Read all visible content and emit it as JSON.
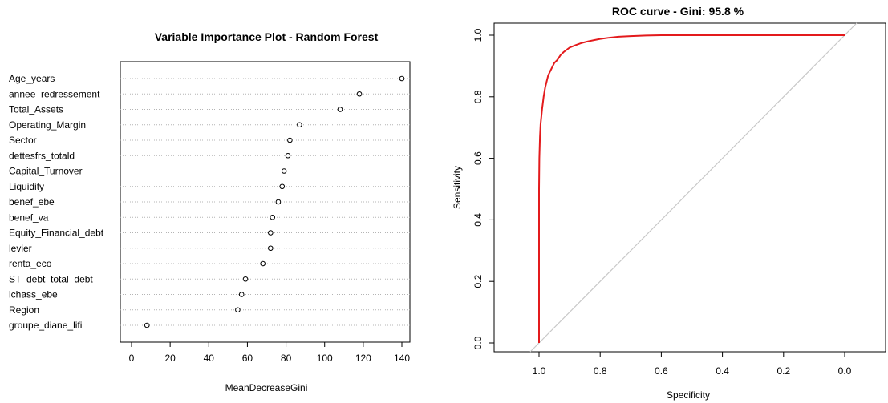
{
  "chart_data": [
    {
      "type": "scatter",
      "title": "Variable Importance Plot - Random Forest",
      "xlabel": "MeanDecreaseGini",
      "ylabel": "",
      "xlim": [
        0,
        145
      ],
      "xticks": [
        "0",
        "20",
        "40",
        "60",
        "80",
        "100",
        "120",
        "140"
      ],
      "categories": [
        "Age_years",
        "annee_redressement",
        "Total_Assets",
        "Operating_Margin",
        "Sector",
        "dettesfrs_totald",
        "Capital_Turnover",
        "Liquidity",
        "benef_ebe",
        "benef_va",
        "Equity_Financial_debt",
        "levier",
        "renta_eco",
        "ST_debt_total_debt",
        "ichass_ebe",
        "Region",
        "groupe_diane_lifi"
      ],
      "values": [
        140,
        118,
        108,
        87,
        82,
        81,
        79,
        78,
        76,
        73,
        72,
        72,
        68,
        59,
        57,
        55,
        8
      ],
      "grid": "dotted-horizontal"
    },
    {
      "type": "line",
      "title": "ROC curve - Gini:  95.8 %",
      "xlabel": "Specificity",
      "ylabel": "Sensitivity",
      "xlim": [
        1.1,
        -0.1
      ],
      "ylim": [
        0,
        1.04
      ],
      "xticks": [
        "1.0",
        "0.8",
        "0.6",
        "0.4",
        "0.2",
        "0.0"
      ],
      "yticks": [
        "0.0",
        "0.2",
        "0.4",
        "0.6",
        "0.8",
        "1.0"
      ],
      "series": [
        {
          "x": [
            1.0,
            1.0,
            0.999,
            0.997,
            0.995,
            0.99,
            0.985,
            0.98,
            0.975,
            0.97,
            0.96,
            0.95,
            0.94,
            0.93,
            0.92,
            0.9,
            0.88,
            0.86,
            0.84,
            0.82,
            0.8,
            0.77,
            0.74,
            0.7,
            0.65,
            0.6,
            0.5,
            0.4,
            0.3,
            0.2,
            0.1,
            0.0
          ],
          "y": [
            0.0,
            0.5,
            0.6,
            0.67,
            0.71,
            0.76,
            0.8,
            0.83,
            0.85,
            0.87,
            0.89,
            0.91,
            0.92,
            0.935,
            0.945,
            0.96,
            0.968,
            0.975,
            0.98,
            0.984,
            0.988,
            0.992,
            0.995,
            0.997,
            0.999,
            1.0,
            1.0,
            1.0,
            1.0,
            1.0,
            1.0,
            1.0
          ],
          "color": "#e31a1c"
        }
      ],
      "reference_line": {
        "x": [
          1.1,
          -0.1
        ],
        "y": [
          -0.1,
          1.1
        ],
        "color": "#c8c8c8"
      }
    }
  ]
}
